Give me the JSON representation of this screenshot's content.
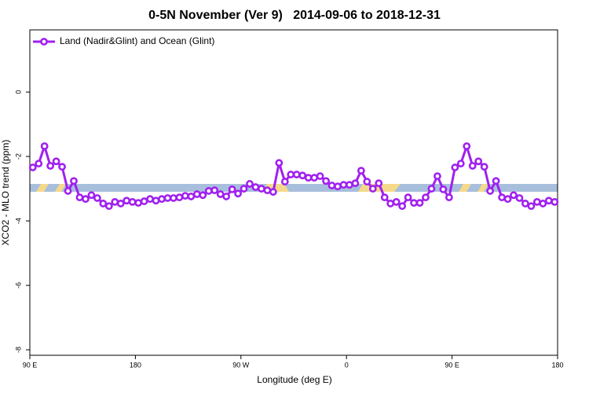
{
  "chart_data": {
    "type": "line",
    "title": "0-5N November (Ver 9)   2014-09-06 to 2018-12-31",
    "x_label": "Longitude (deg E)",
    "y_label": "XCO2 - MLO trend (ppm)",
    "legend": "top-left",
    "x": [
      92.5,
      97.5,
      102.5,
      107.5,
      112.5,
      117.5,
      122.5,
      127.5,
      132.5,
      137.5,
      142.5,
      147.5,
      152.5,
      157.5,
      162.5,
      167.5,
      172.5,
      177.5,
      182.5,
      187.5,
      192.5,
      197.5,
      202.5,
      207.5,
      212.5,
      217.5,
      222.5,
      227.5,
      232.5,
      237.5,
      242.5,
      247.5,
      252.5,
      257.5,
      262.5,
      267.5,
      272.5,
      277.5,
      282.5,
      287.5,
      292.5,
      297.5,
      302.5,
      307.5,
      312.5,
      317.5,
      322.5,
      327.5,
      332.5,
      337.5,
      342.5,
      347.5,
      352.5,
      357.5,
      362.5,
      367.5,
      372.5,
      377.5,
      382.5,
      387.5,
      392.5,
      397.5,
      402.5,
      407.5,
      412.5,
      417.5,
      422.5,
      427.5,
      432.5,
      437.5,
      442.5,
      447.5,
      452.5,
      457.5,
      462.5,
      467.5,
      472.5,
      477.5,
      482.5,
      487.5,
      492.5,
      497.5,
      502.5,
      507.5,
      512.5,
      517.5,
      522.5,
      527.5,
      532.5,
      537.5
    ],
    "series": [
      {
        "name": "Land (Nadir&Glint) and Ocean (Glint)",
        "color": "#a020f0",
        "values": [
          -2.34,
          -2.22,
          -1.68,
          -2.29,
          -2.15,
          -2.32,
          -3.07,
          -2.76,
          -3.27,
          -3.32,
          -3.2,
          -3.29,
          -3.46,
          -3.54,
          -3.41,
          -3.46,
          -3.37,
          -3.41,
          -3.44,
          -3.39,
          -3.32,
          -3.37,
          -3.32,
          -3.29,
          -3.29,
          -3.27,
          -3.22,
          -3.24,
          -3.17,
          -3.2,
          -3.07,
          -3.05,
          -3.17,
          -3.24,
          -3.02,
          -3.15,
          -3.0,
          -2.85,
          -2.95,
          -3.0,
          -3.05,
          -3.1,
          -2.2,
          -2.78,
          -2.56,
          -2.56,
          -2.59,
          -2.66,
          -2.66,
          -2.61,
          -2.76,
          -2.9,
          -2.93,
          -2.88,
          -2.88,
          -2.83,
          -2.44,
          -2.78,
          -3.0,
          -2.83,
          -3.27,
          -3.46,
          -3.41,
          -3.54,
          -3.27,
          -3.44,
          -3.44,
          -3.27,
          -3.0,
          -2.61,
          -3.02,
          -3.27,
          -2.34,
          -2.22,
          -1.68,
          -2.29,
          -2.15,
          -2.32,
          -3.07,
          -2.76,
          -3.27,
          -3.32,
          -3.2,
          -3.29,
          -3.46,
          -3.54,
          -3.41,
          -3.46,
          -3.37,
          -3.41
        ]
      }
    ],
    "xlim": [
      90,
      540
    ],
    "xticks": [
      {
        "value": 90,
        "label": "90 E"
      },
      180,
      {
        "value": 270,
        "label": "90 W"
      },
      {
        "value": 360,
        "label": "0"
      },
      {
        "value": 450,
        "label": "90 E"
      },
      {
        "value": 540,
        "label": "180"
      }
    ],
    "ylim": [
      -8.17,
      1.93
    ],
    "yticks": [
      0,
      -2,
      -4,
      -6,
      -8
    ],
    "grid": false
  }
}
